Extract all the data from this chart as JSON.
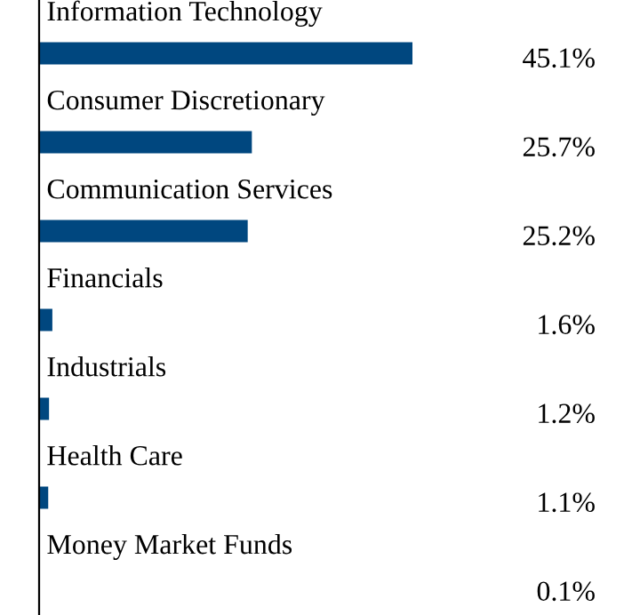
{
  "chart_data": {
    "type": "bar",
    "orientation": "horizontal",
    "categories": [
      "Information Technology",
      "Consumer Discretionary",
      "Communication Services",
      "Financials",
      "Industrials",
      "Health Care",
      "Money Market Funds"
    ],
    "values": [
      45.1,
      25.7,
      25.2,
      1.6,
      1.2,
      1.1,
      0.1
    ],
    "value_labels": [
      "45.1%",
      "25.7%",
      "25.2%",
      "1.6%",
      "1.2%",
      "1.1%",
      "0.1%"
    ],
    "color": "#00477f"
  }
}
